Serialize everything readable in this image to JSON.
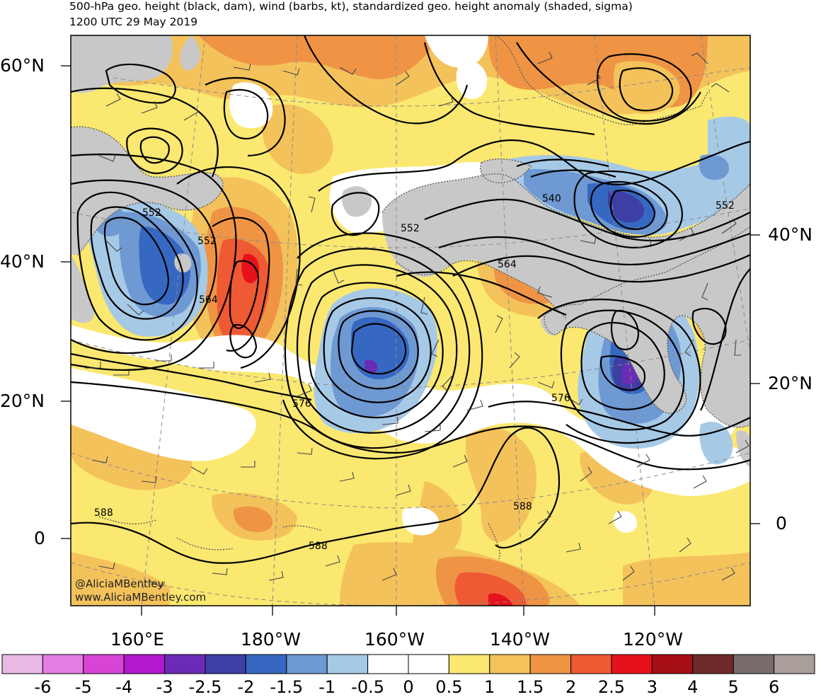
{
  "title": {
    "line1": "500-hPa geo. height (black, dam), wind (barbs, kt), standardized geo. height anomaly (shaded, sigma)",
    "line2": "1200 UTC 29 May 2019"
  },
  "credits": {
    "handle": "@AliciaMBentley",
    "website": "www.AliciaMBentley.com"
  },
  "axes": {
    "lat_labels_left": [
      "60°N",
      "40°N",
      "20°N",
      "0"
    ],
    "lat_labels_right": [
      "40°N",
      "20°N",
      "0"
    ],
    "lon_labels": [
      "160°E",
      "180°W",
      "160°W",
      "140°W",
      "120°W"
    ]
  },
  "contour_labels": [
    "552",
    "552",
    "564",
    "552",
    "540",
    "552",
    "564",
    "576",
    "576",
    "588",
    "588",
    "588"
  ],
  "colorbar": {
    "labels": [
      "-6",
      "-5",
      "-4",
      "-3",
      "-2.5",
      "-2",
      "-1.5",
      "-1",
      "-0.5",
      "0",
      "0.5",
      "1",
      "1.5",
      "2",
      "2.5",
      "3",
      "4",
      "5",
      "6"
    ],
    "colors": [
      "#e9b9e6",
      "#e57ee3",
      "#d744d6",
      "#b218cf",
      "#6b2bb6",
      "#3e3ea4",
      "#3668c2",
      "#6e99d3",
      "#a6c9e6",
      "#ffffff",
      "#ffffff",
      "#fbe870",
      "#f4c25b",
      "#ef9444",
      "#ee5a34",
      "#e5121c",
      "#a50e14",
      "#6e2b29",
      "#766b6a",
      "#aa9e9b"
    ]
  },
  "map_colors": {
    "land": "#c8c8c8",
    "coast": "#555555",
    "contour": "#000000",
    "anom_pos_1": "#fbe870",
    "anom_pos_15": "#f4c25b",
    "anom_pos_2": "#ef9444",
    "anom_pos_25": "#ee5a34",
    "anom_pos_3": "#e5121c",
    "anom_neg_05": "#a6c9e6",
    "anom_neg_1": "#6e99d3",
    "anom_neg_15": "#3668c2",
    "anom_neg_2": "#3e3ea4"
  }
}
